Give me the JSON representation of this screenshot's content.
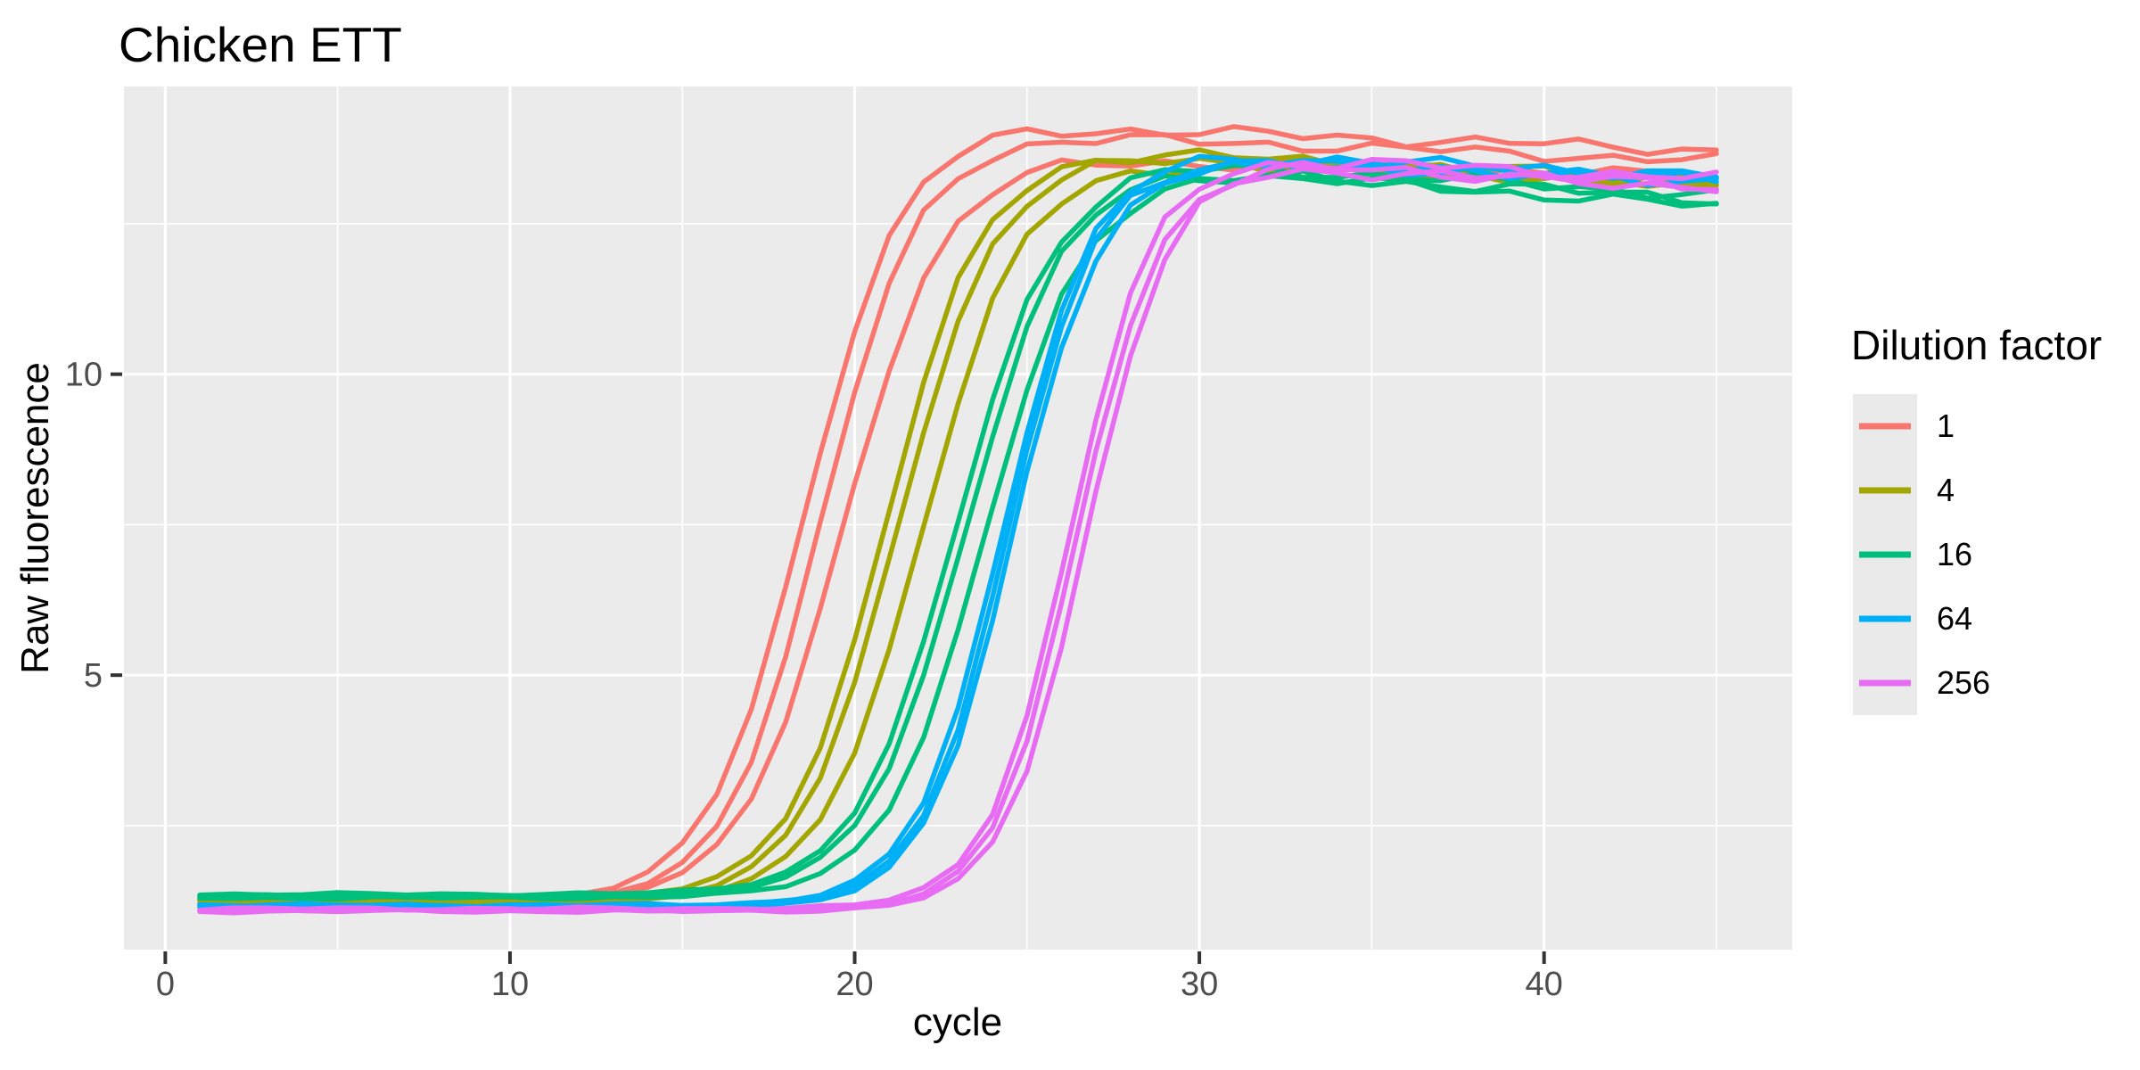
{
  "chart_data": {
    "type": "line",
    "title": "Chicken ETT",
    "xlabel": "cycle",
    "ylabel": "Raw fluorescence",
    "x_ticks": [
      0,
      10,
      20,
      30,
      40
    ],
    "x_minor_gridlines": [
      5,
      15,
      25,
      35,
      45
    ],
    "y_ticks": [
      5,
      10
    ],
    "y_minor_gridlines": [
      2.5,
      7.5,
      12.5
    ],
    "xdomain": [
      -1.2,
      47.2
    ],
    "ydomain": [
      0.44,
      14.78
    ],
    "cycle_min": 1,
    "cycle_max": 45,
    "grid": "on",
    "panel_fill": "#EBEBEB",
    "gridline_color": "#FFFFFF",
    "tick_color": "#333333",
    "tick_label_color": "#4D4D4D",
    "legend": {
      "title": "Dilution factor",
      "position": "right"
    },
    "model": "value(c) = base + (plateau-base)/(1+exp(-k*(c-cmid))) - decline*max(0,c-cmid-5) + small wiggle; 3 replicate wells per dilution factor",
    "series": [
      {
        "label": "1",
        "color": "#F8766D",
        "replicates": [
          {
            "base": 1.25,
            "plateau": 14.15,
            "cmid": 18.55,
            "k": 0.72,
            "decline": 0.02,
            "seed": 1
          },
          {
            "base": 1.22,
            "plateau": 14.0,
            "cmid": 19.05,
            "k": 0.72,
            "decline": 0.022,
            "seed": 2
          },
          {
            "base": 1.27,
            "plateau": 13.6,
            "cmid": 19.65,
            "k": 0.7,
            "decline": 0.016,
            "seed": 3
          }
        ]
      },
      {
        "label": "4",
        "color": "#A3A500",
        "replicates": [
          {
            "base": 1.28,
            "plateau": 13.75,
            "cmid": 20.9,
            "k": 0.72,
            "decline": 0.028,
            "seed": 4
          },
          {
            "base": 1.25,
            "plateau": 13.65,
            "cmid": 21.25,
            "k": 0.72,
            "decline": 0.026,
            "seed": 5
          },
          {
            "base": 1.23,
            "plateau": 13.55,
            "cmid": 21.95,
            "k": 0.7,
            "decline": 0.024,
            "seed": 6
          }
        ]
      },
      {
        "label": "16",
        "color": "#00BF7D",
        "replicates": [
          {
            "base": 1.36,
            "plateau": 13.55,
            "cmid": 22.95,
            "k": 0.7,
            "decline": 0.034,
            "seed": 7
          },
          {
            "base": 1.33,
            "plateau": 13.45,
            "cmid": 23.2,
            "k": 0.7,
            "decline": 0.04,
            "seed": 8
          },
          {
            "base": 1.3,
            "plateau": 13.4,
            "cmid": 23.8,
            "k": 0.7,
            "decline": 0.03,
            "seed": 9
          }
        ]
      },
      {
        "label": "64",
        "color": "#00B0F6",
        "replicates": [
          {
            "base": 1.18,
            "plateau": 13.65,
            "cmid": 24.3,
            "k": 0.8,
            "decline": 0.022,
            "seed": 10
          },
          {
            "base": 1.16,
            "plateau": 13.6,
            "cmid": 24.45,
            "k": 0.8,
            "decline": 0.024,
            "seed": 11
          },
          {
            "base": 1.14,
            "plateau": 13.55,
            "cmid": 24.6,
            "k": 0.8,
            "decline": 0.022,
            "seed": 12
          }
        ]
      },
      {
        "label": "256",
        "color": "#E76BF3",
        "replicates": [
          {
            "base": 1.12,
            "plateau": 13.6,
            "cmid": 26.25,
            "k": 0.85,
            "decline": 0.026,
            "seed": 13
          },
          {
            "base": 1.1,
            "plateau": 13.5,
            "cmid": 26.45,
            "k": 0.85,
            "decline": 0.028,
            "seed": 14
          },
          {
            "base": 1.08,
            "plateau": 13.45,
            "cmid": 26.7,
            "k": 0.85,
            "decline": 0.026,
            "seed": 15
          }
        ]
      }
    ]
  }
}
